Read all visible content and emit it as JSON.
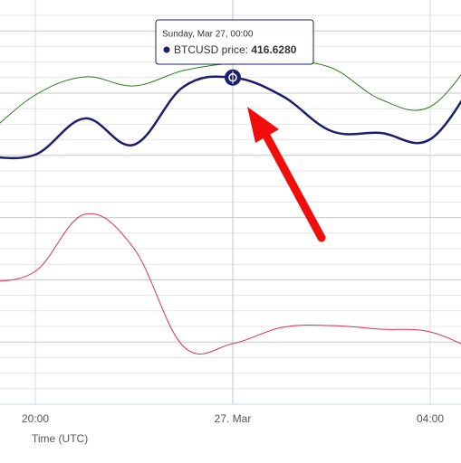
{
  "chart_data": {
    "type": "line",
    "x_label": "Time (UTC)",
    "categories": [
      null,
      "20:00",
      null,
      null,
      null,
      "27. Mar",
      null,
      null,
      null,
      "04:00",
      null
    ],
    "ylim": [
      380.5,
      425.2
    ],
    "series": [
      {
        "color": "#1b1f6b",
        "values": [
          407.9,
          408.1,
          412.1,
          409.2,
          415.6,
          416.628,
          414.6,
          410.7,
          410.5,
          409.8,
          417.2
        ]
      },
      {
        "color": "#2e7d1e",
        "values": [
          410.2,
          414.7,
          416.7,
          415.7,
          417.4,
          418.2,
          418.4,
          417.7,
          414.2,
          413.4,
          419.7
        ]
      },
      {
        "color": "#dc3250",
        "values": [
          394.0,
          395.2,
          401.5,
          397.7,
          386.9,
          387.2,
          389.0,
          389.2,
          388.8,
          388.5,
          386.2
        ]
      }
    ],
    "tooltip": {
      "title": "Sunday, Mar 27, 00:00",
      "label": "BTCUSD price:",
      "value_label": "416.6280",
      "series": 0,
      "index": 5
    }
  }
}
